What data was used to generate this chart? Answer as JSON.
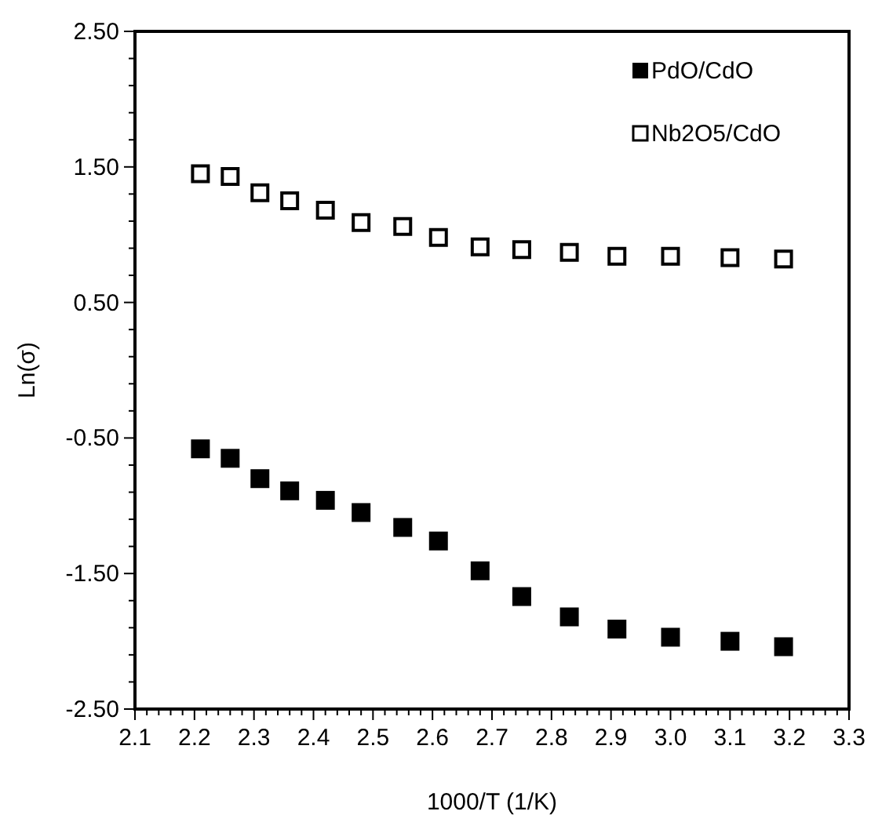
{
  "chart_data": {
    "type": "scatter",
    "xlabel": "1000/T (1/K)",
    "ylabel": "Ln(σ)",
    "xlim": [
      2.1,
      3.3
    ],
    "xticks": [
      {
        "value": 2.1,
        "label": "2.1"
      },
      {
        "value": 2.12,
        "label": null
      },
      {
        "value": 2.14,
        "label": null
      },
      {
        "value": 2.16,
        "label": null
      },
      {
        "value": 2.18,
        "label": null
      },
      {
        "value": 2.2,
        "label": "2.2"
      },
      {
        "value": 2.22,
        "label": null
      },
      {
        "value": 2.24,
        "label": null
      },
      {
        "value": 2.26,
        "label": null
      },
      {
        "value": 2.28,
        "label": null
      },
      {
        "value": 2.3,
        "label": "2.3"
      },
      {
        "value": 2.32,
        "label": null
      },
      {
        "value": 2.34,
        "label": null
      },
      {
        "value": 2.36,
        "label": null
      },
      {
        "value": 2.38,
        "label": null
      },
      {
        "value": 2.4,
        "label": "2.4"
      },
      {
        "value": 2.42,
        "label": null
      },
      {
        "value": 2.44,
        "label": null
      },
      {
        "value": 2.46,
        "label": null
      },
      {
        "value": 2.48,
        "label": null
      },
      {
        "value": 2.5,
        "label": "2.5"
      },
      {
        "value": 2.52,
        "label": null
      },
      {
        "value": 2.54,
        "label": null
      },
      {
        "value": 2.56,
        "label": null
      },
      {
        "value": 2.58,
        "label": null
      },
      {
        "value": 2.6,
        "label": "2.6"
      },
      {
        "value": 2.62,
        "label": null
      },
      {
        "value": 2.64,
        "label": null
      },
      {
        "value": 2.66,
        "label": null
      },
      {
        "value": 2.68,
        "label": null
      },
      {
        "value": 2.7,
        "label": "2.7"
      },
      {
        "value": 2.72,
        "label": null
      },
      {
        "value": 2.74,
        "label": null
      },
      {
        "value": 2.76,
        "label": null
      },
      {
        "value": 2.78,
        "label": null
      },
      {
        "value": 2.8,
        "label": "2.8"
      },
      {
        "value": 2.82,
        "label": null
      },
      {
        "value": 2.84,
        "label": null
      },
      {
        "value": 2.86,
        "label": null
      },
      {
        "value": 2.88,
        "label": null
      },
      {
        "value": 2.9,
        "label": "2.9"
      },
      {
        "value": 2.92,
        "label": null
      },
      {
        "value": 2.94,
        "label": null
      },
      {
        "value": 2.96,
        "label": null
      },
      {
        "value": 2.98,
        "label": null
      },
      {
        "value": 3.0,
        "label": "3.0"
      },
      {
        "value": 3.02,
        "label": null
      },
      {
        "value": 3.04,
        "label": null
      },
      {
        "value": 3.06,
        "label": null
      },
      {
        "value": 3.08,
        "label": null
      },
      {
        "value": 3.1,
        "label": "3.1"
      },
      {
        "value": 3.12,
        "label": null
      },
      {
        "value": 3.14,
        "label": null
      },
      {
        "value": 3.16,
        "label": null
      },
      {
        "value": 3.18,
        "label": null
      },
      {
        "value": 3.2,
        "label": "3.2"
      },
      {
        "value": 3.22,
        "label": null
      },
      {
        "value": 3.24,
        "label": null
      },
      {
        "value": 3.26,
        "label": null
      },
      {
        "value": 3.28,
        "label": null
      },
      {
        "value": 3.3,
        "label": "3.3"
      }
    ],
    "ylim": [
      -2.5,
      2.5
    ],
    "yticks": [
      {
        "value": -2.5,
        "label": "-2.50"
      },
      {
        "value": -2.3,
        "label": null
      },
      {
        "value": -2.1,
        "label": null
      },
      {
        "value": -1.9,
        "label": null
      },
      {
        "value": -1.7,
        "label": null
      },
      {
        "value": -1.5,
        "label": "-1.50"
      },
      {
        "value": -1.3,
        "label": null
      },
      {
        "value": -1.1,
        "label": null
      },
      {
        "value": -0.9,
        "label": null
      },
      {
        "value": -0.7,
        "label": null
      },
      {
        "value": -0.5,
        "label": "-0.50"
      },
      {
        "value": -0.3,
        "label": null
      },
      {
        "value": -0.1,
        "label": null
      },
      {
        "value": 0.1,
        "label": null
      },
      {
        "value": 0.3,
        "label": null
      },
      {
        "value": 0.5,
        "label": "0.50"
      },
      {
        "value": 0.7,
        "label": null
      },
      {
        "value": 0.9,
        "label": null
      },
      {
        "value": 1.1,
        "label": null
      },
      {
        "value": 1.3,
        "label": null
      },
      {
        "value": 1.5,
        "label": "1.50"
      },
      {
        "value": 1.7,
        "label": null
      },
      {
        "value": 1.9,
        "label": null
      },
      {
        "value": 2.1,
        "label": null
      },
      {
        "value": 2.3,
        "label": null
      },
      {
        "value": 2.5,
        "label": "2.50"
      }
    ],
    "x": [
      2.21,
      2.26,
      2.31,
      2.36,
      2.42,
      2.48,
      2.55,
      2.61,
      2.68,
      2.75,
      2.83,
      2.91,
      3.0,
      3.1,
      3.19
    ],
    "marker": "square",
    "grid": false,
    "legend": "top right",
    "series": [
      {
        "name": "PdO/CdO",
        "color": "#000000",
        "values": [
          -0.58,
          -0.65,
          -0.8,
          -0.89,
          -0.96,
          -1.05,
          -1.16,
          -1.26,
          -1.48,
          -1.67,
          -1.82,
          -1.91,
          -1.97,
          -2.0,
          -2.04
        ]
      },
      {
        "name": "Nb2O5/CdO",
        "color": "#000000",
        "values": [
          1.45,
          1.43,
          1.31,
          1.25,
          1.18,
          1.09,
          1.06,
          0.98,
          0.91,
          0.89,
          0.87,
          0.84,
          0.84,
          0.83,
          0.82
        ]
      }
    ]
  }
}
